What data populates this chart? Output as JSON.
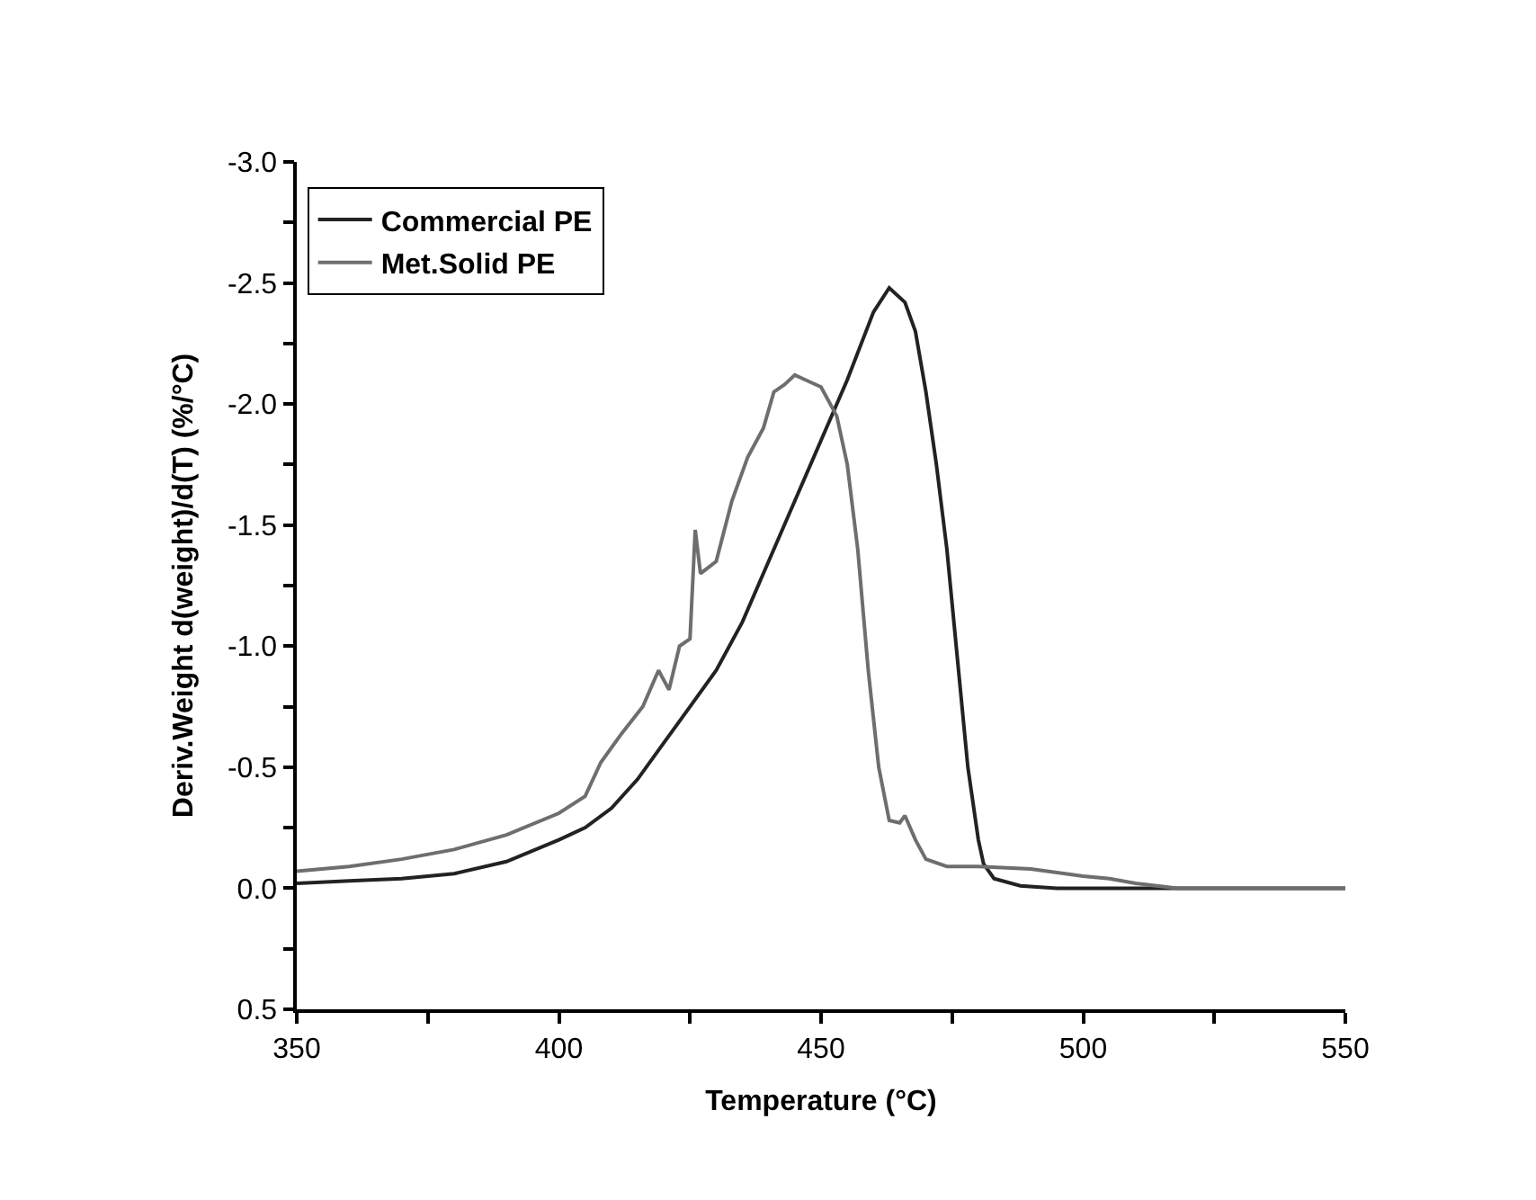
{
  "chart_data": {
    "type": "line",
    "xlabel": "Temperature (°C)",
    "ylabel": "Deriv.Weight d(weight)/d(T) (%/°C)",
    "xlim": [
      350,
      550
    ],
    "xticks": [
      350,
      {
        "value": 375,
        "label": null
      },
      400,
      {
        "value": 425,
        "label": null
      },
      450,
      {
        "value": 475,
        "label": null
      },
      500,
      {
        "value": 525,
        "label": null
      },
      550
    ],
    "ylim": [
      0.5,
      -3.0
    ],
    "yticks": [
      {
        "value": 0.5,
        "label": "0.5"
      },
      {
        "value": 0.25,
        "label": null
      },
      {
        "value": 0,
        "label": "0.0"
      },
      {
        "value": -0.25,
        "label": null
      },
      {
        "value": -0.5,
        "label": "-0.5"
      },
      {
        "value": -0.75,
        "label": null
      },
      {
        "value": -1.0,
        "label": "-1.0"
      },
      {
        "value": -1.25,
        "label": null
      },
      {
        "value": -1.5,
        "label": "-1.5"
      },
      {
        "value": -1.75,
        "label": null
      },
      {
        "value": -2.0,
        "label": "-2.0"
      },
      {
        "value": -2.25,
        "label": null
      },
      {
        "value": -2.5,
        "label": "-2.5"
      },
      {
        "value": -2.75,
        "label": null
      },
      {
        "value": -3.0,
        "label": "-3.0"
      }
    ],
    "legend": "top left",
    "marker": "none",
    "line_style": "solid",
    "series": [
      {
        "name": "Commercial PE",
        "color": "#222222",
        "x": [
          350,
          360,
          370,
          380,
          390,
          400,
          405,
          410,
          415,
          420,
          425,
          430,
          435,
          440,
          445,
          450,
          455,
          460,
          463,
          466,
          468,
          470,
          472,
          474,
          476,
          478,
          480,
          481,
          483,
          488,
          495,
          520,
          550
        ],
        "values": [
          -0.02,
          -0.03,
          -0.04,
          -0.06,
          -0.11,
          -0.2,
          -0.25,
          -0.33,
          -0.45,
          -0.6,
          -0.75,
          -0.9,
          -1.1,
          -1.35,
          -1.6,
          -1.85,
          -2.1,
          -2.38,
          -2.48,
          -2.42,
          -2.3,
          -2.05,
          -1.75,
          -1.4,
          -0.95,
          -0.5,
          -0.2,
          -0.1,
          -0.04,
          -0.01,
          0,
          0,
          0
        ]
      },
      {
        "name": "Met.Solid PE",
        "color": "#6e6e6e",
        "x": [
          350,
          360,
          370,
          380,
          390,
          400,
          405,
          408,
          412,
          416,
          419,
          421,
          423,
          425,
          426,
          427,
          430,
          433,
          436,
          439,
          441,
          443,
          445,
          447,
          450,
          453,
          455,
          457,
          459,
          461,
          463,
          465,
          466,
          468,
          470,
          474,
          480,
          490,
          500,
          505,
          510,
          518,
          550
        ],
        "values": [
          -0.07,
          -0.09,
          -0.12,
          -0.16,
          -0.22,
          -0.31,
          -0.38,
          -0.52,
          -0.64,
          -0.75,
          -0.9,
          -0.82,
          -1.0,
          -1.03,
          -1.48,
          -1.3,
          -1.35,
          -1.6,
          -1.78,
          -1.9,
          -2.05,
          -2.08,
          -2.12,
          -2.1,
          -2.07,
          -1.95,
          -1.75,
          -1.4,
          -0.9,
          -0.5,
          -0.28,
          -0.27,
          -0.3,
          -0.2,
          -0.12,
          -0.09,
          -0.09,
          -0.08,
          -0.05,
          -0.04,
          -0.02,
          0,
          0
        ]
      }
    ]
  }
}
